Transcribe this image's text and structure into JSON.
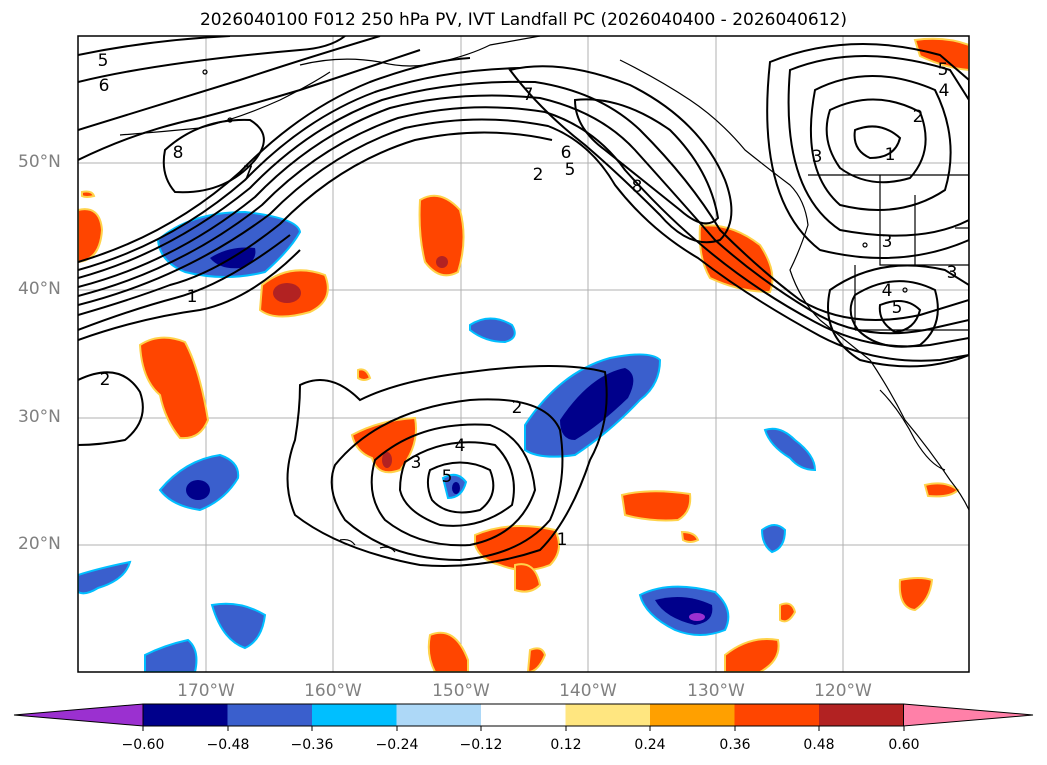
{
  "title": "2026040100 F012 250 hPa PV, IVT Landfall PC (2026040400 - 2026040612)",
  "map": {
    "lat_labels": [
      "50°N",
      "40°N",
      "30°N",
      "20°N"
    ],
    "lon_labels": [
      "170°W",
      "160°W",
      "150°W",
      "140°W",
      "130°W",
      "120°W"
    ],
    "contour_labels": [
      "5",
      "6",
      "8",
      "7",
      "1",
      "2",
      "7",
      "6",
      "5",
      "2",
      "8",
      "5",
      "4",
      "2",
      "1",
      "3",
      "3",
      "4",
      "5",
      "3",
      "2",
      "4",
      "3",
      "5",
      "1"
    ]
  },
  "colorbar": {
    "ticks": [
      "−0.60",
      "−0.48",
      "−0.36",
      "−0.24",
      "−0.12",
      "0.12",
      "0.24",
      "0.36",
      "0.48",
      "0.60"
    ],
    "colors": [
      "#9b30d0",
      "#00008b",
      "#3a5fcd",
      "#00bfff",
      "#add8f7",
      "#ffffff",
      "#ffe680",
      "#ffa000",
      "#ff4500",
      "#b22222",
      "#ff80a8"
    ]
  }
}
